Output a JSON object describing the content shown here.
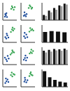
{
  "chart_data": [
    {
      "type": "scatter",
      "xlim": [
        0,
        100
      ],
      "ylim": [
        0,
        100
      ],
      "xticks": [
        0,
        50,
        100
      ],
      "yticks": [
        0,
        50,
        100
      ],
      "tick_labels": false,
      "series": [
        {
          "color": "#1f4e9c",
          "x": [
            15,
            22,
            30,
            18,
            26
          ],
          "values": [
            20,
            28,
            18,
            35,
            40
          ]
        },
        {
          "color": "#3aa655",
          "x": [
            60,
            70,
            78,
            65,
            85
          ],
          "values": [
            65,
            72,
            60,
            80,
            75
          ]
        }
      ]
    },
    {
      "type": "scatter",
      "xlim": [
        0,
        100
      ],
      "ylim": [
        0,
        100
      ],
      "xticks": [
        0,
        50,
        100
      ],
      "yticks": [
        0,
        50,
        100
      ],
      "tick_labels": false,
      "series": [
        {
          "color": "#1f4e9c",
          "x": [
            20,
            28,
            35,
            25,
            40
          ],
          "values": [
            25,
            30,
            22,
            45,
            35
          ]
        },
        {
          "color": "#3aa655",
          "x": [
            55,
            68,
            75,
            62,
            80
          ],
          "values": [
            70,
            78,
            66,
            85,
            72
          ]
        }
      ]
    },
    {
      "type": "scatter",
      "xlim": [
        0,
        100
      ],
      "ylim": [
        0,
        100
      ],
      "xticks": [
        0,
        50,
        100
      ],
      "yticks": [
        0,
        50,
        100
      ],
      "tick_labels": false,
      "series": [
        {
          "color": "#1f4e9c",
          "x": [
            18,
            25,
            32,
            40,
            28
          ],
          "values": [
            30,
            22,
            40,
            28,
            50
          ]
        },
        {
          "color": "#3aa655",
          "x": [
            58,
            66,
            74,
            82,
            70
          ],
          "values": [
            60,
            74,
            68,
            78,
            85
          ]
        }
      ]
    },
    {
      "type": "scatter",
      "xlim": [
        0,
        100
      ],
      "ylim": [
        0,
        100
      ],
      "xticks": [
        0,
        50,
        100
      ],
      "yticks": [
        0,
        50,
        100
      ],
      "tick_labels": false,
      "series": [
        {
          "color": "#1f4e9c",
          "x": [
            22,
            30,
            38,
            26,
            45
          ],
          "values": [
            35,
            25,
            45,
            55,
            30
          ]
        },
        {
          "color": "#3aa655",
          "x": [
            60,
            72,
            80,
            66,
            88
          ],
          "values": [
            62,
            70,
            76,
            82,
            68
          ]
        }
      ]
    },
    {
      "type": "scatter",
      "xlim": [
        0,
        100
      ],
      "ylim": [
        0,
        100
      ],
      "xticks": [
        0,
        50,
        100
      ],
      "yticks": [
        0,
        50,
        100
      ],
      "tick_labels": false,
      "series": [
        {
          "color": "#1f4e9c",
          "x": [
            15,
            24,
            35,
            30,
            42
          ],
          "values": [
            40,
            30,
            50,
            20,
            35
          ]
        },
        {
          "color": "#3aa655",
          "x": [
            55,
            64,
            72,
            80,
            68
          ],
          "values": [
            58,
            66,
            74,
            70,
            82
          ]
        }
      ]
    },
    {
      "type": "scatter",
      "xlim": [
        0,
        100
      ],
      "ylim": [
        0,
        100
      ],
      "xticks": [
        0,
        50,
        100
      ],
      "yticks": [
        0,
        50,
        100
      ],
      "tick_labels": false,
      "series": [
        {
          "color": "#1f4e9c",
          "x": [
            20,
            28,
            36,
            44,
            32
          ],
          "values": [
            28,
            38,
            24,
            40,
            52
          ]
        },
        {
          "color": "#3aa655",
          "x": [
            62,
            70,
            78,
            86,
            74
          ],
          "values": [
            64,
            72,
            66,
            78,
            86
          ]
        }
      ]
    },
    {
      "type": "scatter",
      "xlim": [
        0,
        100
      ],
      "ylim": [
        0,
        100
      ],
      "xticks": [
        0,
        50,
        100
      ],
      "yticks": [
        0,
        50,
        100
      ],
      "tick_labels": false,
      "series": [
        {
          "color": "#1f4e9c",
          "x": [
            18,
            26,
            34,
            22,
            40
          ],
          "values": [
            22,
            32,
            42,
            48,
            28
          ]
        },
        {
          "color": "#3aa655",
          "x": [
            58,
            68,
            76,
            64,
            84
          ],
          "values": [
            68,
            60,
            74,
            82,
            70
          ]
        }
      ]
    },
    {
      "type": "scatter",
      "xlim": [
        0,
        100
      ],
      "ylim": [
        0,
        100
      ],
      "xticks": [
        0,
        50,
        100
      ],
      "yticks": [
        0,
        50,
        100
      ],
      "tick_labels": false,
      "series": [
        {
          "color": "#1f4e9c",
          "x": [
            24,
            30,
            38,
            28,
            46
          ],
          "values": [
            30,
            40,
            26,
            52,
            38
          ]
        },
        {
          "color": "#3aa655",
          "x": [
            60,
            66,
            74,
            82,
            70
          ],
          "values": [
            62,
            76,
            70,
            66,
            84
          ]
        }
      ]
    },
    {
      "type": "bar",
      "categories": [
        null,
        null,
        null,
        null,
        null
      ],
      "ylim": [
        0,
        100
      ],
      "yticks": [
        0,
        50,
        100
      ],
      "tick_labels": false,
      "series": [
        {
          "color": "#111111",
          "values": [
            30,
            55,
            70,
            85,
            95
          ]
        },
        {
          "color": "#9a9a9a",
          "values": [
            25,
            45,
            60,
            80,
            90
          ]
        }
      ]
    },
    {
      "type": "bar",
      "categories": [
        null,
        null,
        null,
        null
      ],
      "ylim": [
        0,
        100
      ],
      "yticks": [
        0,
        50,
        100
      ],
      "tick_labels": false,
      "series": [
        {
          "color": "#111111",
          "values": [
            60,
            65,
            62,
            58
          ]
        }
      ]
    },
    {
      "type": "bar",
      "categories": [
        null,
        null,
        null,
        null,
        null
      ],
      "ylim": [
        0,
        100
      ],
      "yticks": [
        0,
        50,
        100
      ],
      "tick_labels": false,
      "series": [
        {
          "color": "#111111",
          "values": [
            80,
            85,
            90,
            88,
            92
          ]
        },
        {
          "color": "#9a9a9a",
          "values": [
            70,
            75,
            82,
            80,
            85
          ]
        }
      ]
    },
    {
      "type": "bar",
      "categories": [
        null,
        null,
        null,
        null,
        null
      ],
      "ylim": [
        0,
        100
      ],
      "yticks": [
        0,
        50,
        100
      ],
      "tick_labels": false,
      "series": [
        {
          "color": "#111111",
          "values": [
            90,
            55,
            40,
            30,
            25
          ]
        }
      ]
    }
  ]
}
